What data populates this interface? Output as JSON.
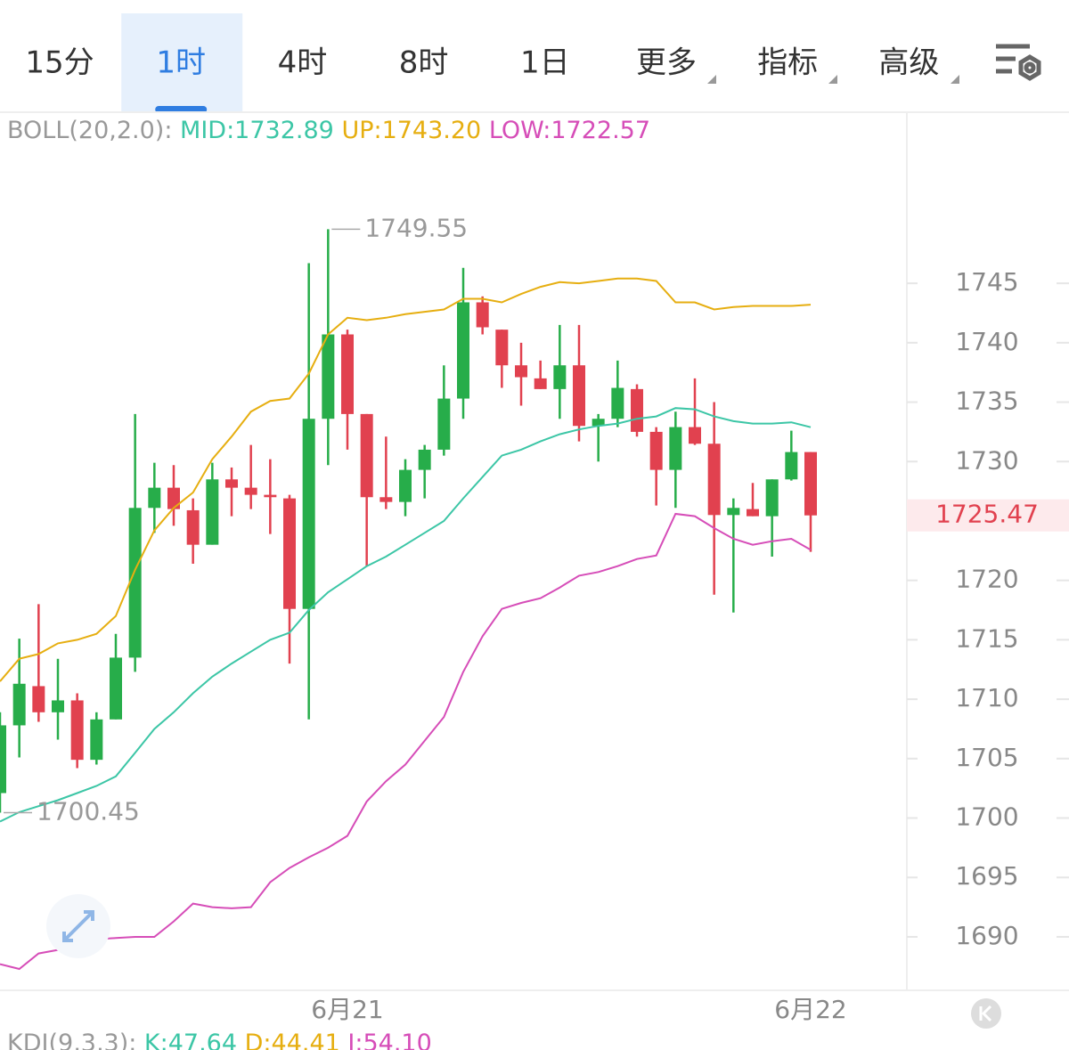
{
  "tabs": [
    "15分",
    "1时",
    "4时",
    "8时",
    "1日",
    "更多",
    "指标",
    "高级"
  ],
  "selected_tab": 1,
  "chart_data": {
    "type": "candlestick",
    "indicator": {
      "label": "BOLL(20,2.0):",
      "lines": [
        {
          "label": "MID:1732.89",
          "color": "#3cc6a6",
          "values": [
            1699.7,
            1700.5,
            1701.0,
            1701.5,
            1702.1,
            1702.7,
            1703.5,
            1705.5,
            1707.5,
            1708.9,
            1710.5,
            1711.9,
            1713.0,
            1714.0,
            1715.0,
            1715.6,
            1717.5,
            1719.0,
            1720.1,
            1721.2,
            1722.0,
            1723.0,
            1724.0,
            1725.0,
            1726.9,
            1728.7,
            1730.5,
            1731.0,
            1731.7,
            1732.3,
            1732.7,
            1733.0,
            1733.2,
            1733.6,
            1733.8,
            1734.5,
            1734.4,
            1733.8,
            1733.4,
            1733.2,
            1733.2,
            1733.3,
            1732.89
          ]
        },
        {
          "label": "UP:1743.20",
          "color": "#e6ae10",
          "values": [
            1711.5,
            1713.4,
            1713.8,
            1714.7,
            1715.0,
            1715.5,
            1717.0,
            1720.9,
            1724.2,
            1726.1,
            1727.4,
            1730.2,
            1732.1,
            1734.2,
            1735.1,
            1735.3,
            1737.4,
            1740.7,
            1742.1,
            1741.9,
            1742.1,
            1742.4,
            1742.6,
            1742.8,
            1743.7,
            1743.7,
            1743.4,
            1744.1,
            1744.7,
            1745.1,
            1745.0,
            1745.2,
            1745.4,
            1745.4,
            1745.2,
            1743.4,
            1743.4,
            1742.8,
            1743.0,
            1743.1,
            1743.1,
            1743.1,
            1743.2
          ]
        },
        {
          "label": "LOW:1722.57",
          "color": "#d64db8",
          "values": [
            1687.7,
            1687.3,
            1688.6,
            1688.9,
            1689.2,
            1689.8,
            1689.9,
            1690.0,
            1690.0,
            1691.3,
            1692.8,
            1692.5,
            1692.4,
            1692.5,
            1694.6,
            1695.8,
            1696.7,
            1697.5,
            1698.5,
            1701.4,
            1703.1,
            1704.5,
            1706.5,
            1708.5,
            1712.3,
            1715.3,
            1717.6,
            1718.1,
            1718.5,
            1719.4,
            1720.4,
            1720.7,
            1721.2,
            1721.8,
            1722.1,
            1725.6,
            1725.4,
            1724.4,
            1723.5,
            1723.0,
            1723.3,
            1723.5,
            1722.57
          ]
        }
      ]
    },
    "categories": [
      null,
      null,
      null,
      null,
      null,
      null,
      null,
      null,
      null,
      null,
      null,
      null,
      null,
      null,
      null,
      null,
      null,
      null,
      "6月21",
      null,
      null,
      null,
      null,
      null,
      null,
      null,
      null,
      null,
      null,
      null,
      null,
      null,
      null,
      null,
      null,
      null,
      null,
      null,
      null,
      null,
      null,
      null,
      "6月22"
    ],
    "candles": {
      "open": [
        1702.1,
        1707.8,
        1711.1,
        1708.9,
        1709.9,
        1704.9,
        1708.3,
        1713.5,
        1726.1,
        1727.8,
        1725.9,
        1723.0,
        1728.5,
        1727.8,
        1727.2,
        1726.9,
        1717.6,
        1733.6,
        1740.7,
        1734.0,
        1727.0,
        1726.6,
        1729.3,
        1731.0,
        1735.3,
        1743.4,
        1741.1,
        1738.1,
        1737.0,
        1736.1,
        1738.1,
        1733.0,
        1733.6,
        1736.1,
        1732.5,
        1729.3,
        1732.9,
        1731.5,
        1725.5,
        1726.0,
        1725.4,
        1728.5,
        1730.8
      ],
      "high": [
        1708.9,
        1715.1,
        1718.0,
        1713.4,
        1710.5,
        1708.9,
        1715.5,
        1734.0,
        1729.9,
        1729.7,
        1726.9,
        1729.9,
        1729.5,
        1731.4,
        1730.2,
        1727.2,
        1746.7,
        1749.55,
        1741.1,
        1734.0,
        1732.1,
        1730.2,
        1731.4,
        1738.1,
        1746.3,
        1743.9,
        1741.1,
        1740.0,
        1738.5,
        1741.5,
        1741.5,
        1734.0,
        1738.5,
        1736.5,
        1732.9,
        1734.2,
        1737.0,
        1735.0,
        1726.9,
        1728.2,
        1728.5,
        1732.6,
        1730.8
      ],
      "low": [
        1700.45,
        1705.1,
        1708.1,
        1706.6,
        1704.2,
        1704.5,
        1708.3,
        1712.3,
        1724.0,
        1724.6,
        1721.4,
        1723.0,
        1725.4,
        1726.0,
        1723.9,
        1713.0,
        1708.3,
        1729.7,
        1731.0,
        1721.2,
        1726.0,
        1725.4,
        1726.9,
        1730.5,
        1733.6,
        1740.7,
        1736.2,
        1734.7,
        1736.1,
        1733.6,
        1731.7,
        1730.0,
        1732.9,
        1732.1,
        1726.3,
        1726.1,
        1731.4,
        1718.8,
        1717.3,
        1725.4,
        1722.0,
        1728.4,
        1722.4
      ],
      "close": [
        1707.8,
        1711.3,
        1708.9,
        1709.9,
        1704.9,
        1708.3,
        1713.5,
        1726.1,
        1727.8,
        1726.0,
        1723.0,
        1728.5,
        1727.8,
        1727.2,
        1727.0,
        1717.6,
        1733.6,
        1740.7,
        1734.0,
        1727.0,
        1726.6,
        1729.3,
        1731.0,
        1735.3,
        1743.4,
        1741.3,
        1738.1,
        1737.1,
        1736.1,
        1738.1,
        1733.0,
        1733.6,
        1736.2,
        1732.5,
        1729.3,
        1732.9,
        1731.5,
        1725.5,
        1726.1,
        1725.4,
        1728.5,
        1730.8,
        1725.47
      ]
    },
    "up_color": "#27ad4a",
    "down_color": "#e1414f",
    "ylim": [
      1685.5,
      1759.1
    ],
    "yticks": [
      1690,
      1695,
      1700,
      1705,
      1710,
      1715,
      1720,
      1725,
      1730,
      1735,
      1740,
      1745
    ],
    "sub_indicator": {
      "label": "KDJ(9,3,3):",
      "lines": [
        {
          "label": "K:47.64",
          "color": "#3cc6a6"
        },
        {
          "label": "D:44.41",
          "color": "#e6ae10"
        },
        {
          "label": "J:54.10",
          "color": "#d64db8"
        }
      ]
    }
  }
}
